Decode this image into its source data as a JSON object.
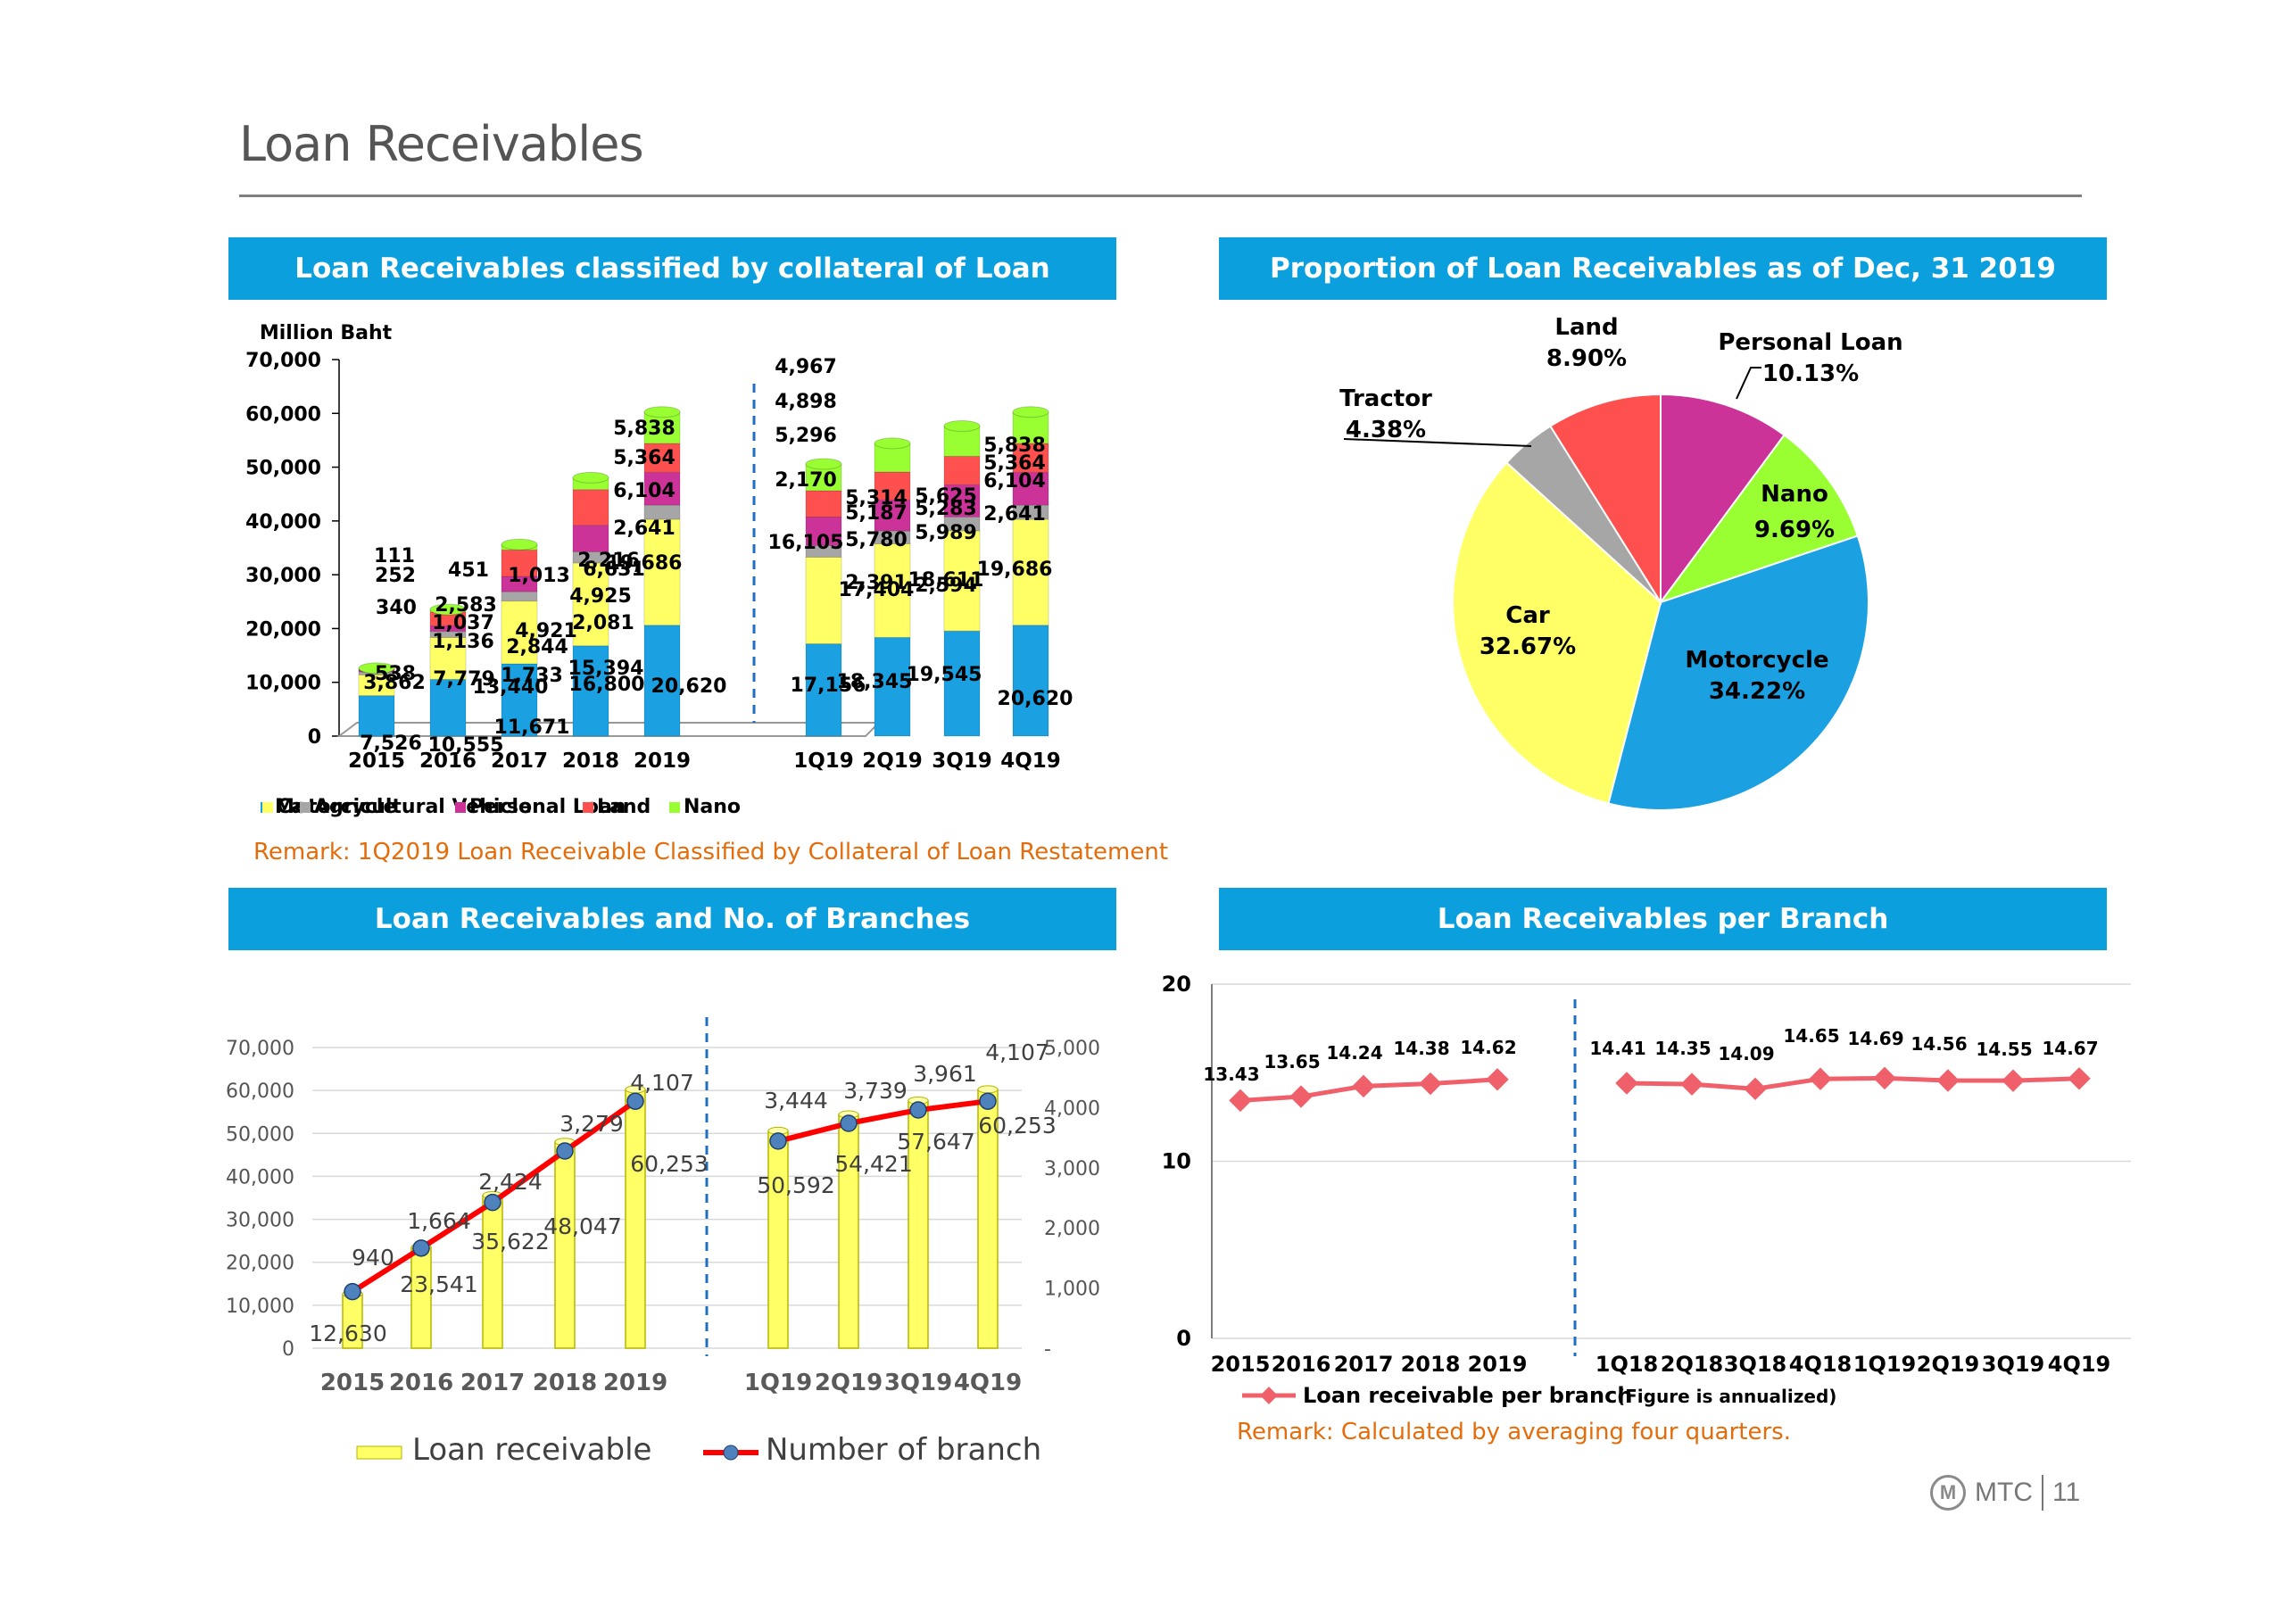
{
  "page": {
    "title": "Loan Receivables",
    "logo_text": "MTC",
    "page_number": "11"
  },
  "panels": {
    "collateral": "Loan Receivables classified by collateral of Loan",
    "proportion": "Proportion of Loan Receivables as of Dec, 31 2019",
    "branches": "Loan Receivables and No. of Branches",
    "per_branch": "Loan Receivables per Branch"
  },
  "remarks": {
    "collateral": "Remark: 1Q2019 Loan Receivable Classified by Collateral of Loan Restatement",
    "per_branch": "Remark: Calculated by averaging four quarters."
  },
  "colors": {
    "banner": "#0ba0dd",
    "motorcycle": "#1ba1e2",
    "car": "#ffff66",
    "agri": "#a6a6a6",
    "personal": "#cc3399",
    "land": "#ff5050",
    "nano": "#99ff33",
    "line_red": "#ff0000",
    "per_branch_line": "#f0606a"
  },
  "chart_data": [
    {
      "type": "bar",
      "stacked": true,
      "ylabel": "Million Baht",
      "ylim": [
        0,
        70000
      ],
      "yticks": [
        "0",
        "10,000",
        "20,000",
        "30,000",
        "40,000",
        "50,000",
        "60,000",
        "70,000"
      ],
      "categories": [
        "2015",
        "2016",
        "2017",
        "2018",
        "2019",
        "1Q19",
        "2Q19",
        "3Q19",
        "4Q19"
      ],
      "series": [
        {
          "name": "Motorcycle",
          "values": [
            7526,
            10555,
            13440,
            16800,
            20620,
            17156,
            18345,
            19545,
            20620
          ],
          "labels": [
            "7,526",
            "10,555",
            "13,440",
            "16,800",
            "20,620",
            "17,156",
            "18,345",
            "19,545",
            "20,620"
          ]
        },
        {
          "name": "Car",
          "values": [
            3862,
            7779,
            11671,
            15394,
            19686,
            16105,
            17404,
            18611,
            19686
          ],
          "labels": [
            "3,862",
            "7,779",
            "11,671",
            "15,394",
            "19,686",
            "16,105",
            "17,404",
            "18,611",
            "19,686"
          ]
        },
        {
          "name": "Agricultural Vehicle",
          "values": [
            538,
            1136,
            1733,
            2081,
            2641,
            2170,
            2391,
            2594,
            2641
          ],
          "labels": [
            "538",
            "1,136",
            "1,733",
            "2,081",
            "2,641",
            "2,170",
            "2,391",
            "2,594",
            "2,641"
          ]
        },
        {
          "name": "Personal Loan",
          "values": [
            340,
            1037,
            2844,
            4925,
            6104,
            5296,
            5780,
            5989,
            6104
          ],
          "labels": [
            "340",
            "1,037",
            "2,844",
            "4,925",
            "6,104",
            "5,296",
            "5,780",
            "5,989",
            "6,104"
          ]
        },
        {
          "name": "Land",
          "values": [
            252,
            2583,
            4921,
            6631,
            5364,
            4898,
            5187,
            5283,
            5364
          ],
          "labels": [
            "252",
            "2,583",
            "4,921",
            "6,631",
            "5,364",
            "4,898",
            "5,187",
            "5,283",
            "5,364"
          ]
        },
        {
          "name": "Nano",
          "values": [
            111,
            451,
            1013,
            2216,
            5838,
            4967,
            5314,
            5625,
            5838
          ],
          "labels": [
            "111",
            "451",
            "1,013",
            "2,216",
            "5,838",
            "4,967",
            "5,314",
            "5,625",
            "5,838"
          ]
        }
      ],
      "legend_position": "bottom"
    },
    {
      "type": "pie",
      "slices": [
        {
          "name": "Motorcycle",
          "value": 34.22,
          "label": "34.22%"
        },
        {
          "name": "Car",
          "value": 32.67,
          "label": "32.67%"
        },
        {
          "name": "Tractor",
          "value": 4.38,
          "label": "4.38%"
        },
        {
          "name": "Land",
          "value": 8.9,
          "label": "8.90%"
        },
        {
          "name": "Personal Loan",
          "value": 10.13,
          "label": "10.13%"
        },
        {
          "name": "Nano",
          "value": 9.69,
          "label": "9.69%"
        }
      ]
    },
    {
      "type": "bar+line",
      "categories": [
        "2015",
        "2016",
        "2017",
        "2018",
        "2019",
        "1Q19",
        "2Q19",
        "3Q19",
        "4Q19"
      ],
      "ylim": [
        0,
        70000
      ],
      "yticks": [
        "0",
        "10,000",
        "20,000",
        "30,000",
        "40,000",
        "50,000",
        "60,000",
        "70,000"
      ],
      "y2lim": [
        0,
        5000
      ],
      "y2ticks": [
        "-",
        "1,000",
        "2,000",
        "3,000",
        "4,000",
        "5,000"
      ],
      "series": [
        {
          "name": "Loan receivable",
          "type": "bar",
          "values": [
            12630,
            23541,
            35622,
            48047,
            60253,
            50592,
            54421,
            57647,
            60253
          ],
          "labels": [
            "12,630",
            "23,541",
            "35,622",
            "48,047",
            "60,253",
            "50,592",
            "54,421",
            "57,647",
            "60,253"
          ]
        },
        {
          "name": "Number of branch",
          "type": "line",
          "axis": "right",
          "values": [
            940,
            1664,
            2424,
            3279,
            4107,
            3444,
            3739,
            3961,
            4107
          ],
          "labels": [
            "940",
            "1,664",
            "2,424",
            "3,279",
            "4,107",
            "3,444",
            "3,739",
            "3,961",
            "4,107"
          ]
        }
      ],
      "legend_position": "bottom"
    },
    {
      "type": "line",
      "categories": [
        "2015",
        "2016",
        "2017",
        "2018",
        "2019",
        "1Q18",
        "2Q18",
        "3Q18",
        "4Q18",
        "1Q19",
        "2Q19",
        "3Q19",
        "4Q19"
      ],
      "ylim": [
        0,
        20
      ],
      "yticks": [
        "0",
        "10",
        "20"
      ],
      "series": [
        {
          "name": "Loan receivable per branch",
          "values": [
            13.43,
            13.65,
            14.24,
            14.38,
            14.62,
            14.41,
            14.35,
            14.09,
            14.65,
            14.69,
            14.56,
            14.55,
            14.67
          ],
          "labels": [
            "13.43",
            "13.65",
            "14.24",
            "14.38",
            "14.62",
            "14.41",
            "14.35",
            "14.09",
            "14.65",
            "14.69",
            "14.56",
            "14.55",
            "14.67"
          ]
        }
      ],
      "legend_note": "(Figure is annualized)",
      "legend_position": "bottom"
    }
  ]
}
